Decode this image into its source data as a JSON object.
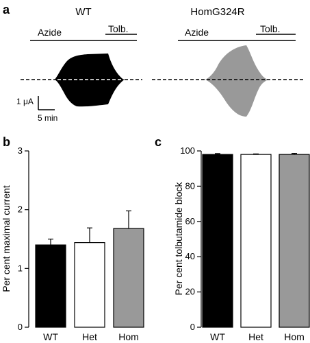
{
  "panels": {
    "a": "a",
    "b": "b",
    "c": "c"
  },
  "traces": {
    "left_title": "WT",
    "right_title": "HomG324R",
    "azide_label": "Azide",
    "tolb_label": "Tolb.",
    "scale_current": "1 μA",
    "scale_time": "5 min",
    "left_color": "#000000",
    "right_color": "#999999"
  },
  "chart_data": [
    {
      "type": "bar",
      "panel": "b",
      "categories": [
        "WT",
        "Het",
        "Hom"
      ],
      "values": [
        1.4,
        1.44,
        1.68
      ],
      "errors": [
        0.1,
        0.25,
        0.3
      ],
      "colors": [
        "#000000",
        "#ffffff",
        "#999999"
      ],
      "ylabel": "Per cent maximal current",
      "ylim": [
        0,
        3
      ],
      "yticks": [
        0,
        1,
        2,
        3
      ]
    },
    {
      "type": "bar",
      "panel": "c",
      "categories": [
        "WT",
        "Het",
        "Hom"
      ],
      "values": [
        98,
        98,
        98
      ],
      "errors": [
        0.5,
        0.3,
        0.6
      ],
      "colors": [
        "#000000",
        "#ffffff",
        "#999999"
      ],
      "ylabel": "Per cent tolbutamide block",
      "ylim": [
        0,
        100
      ],
      "yticks": [
        0,
        20,
        40,
        60,
        80,
        100
      ]
    }
  ]
}
